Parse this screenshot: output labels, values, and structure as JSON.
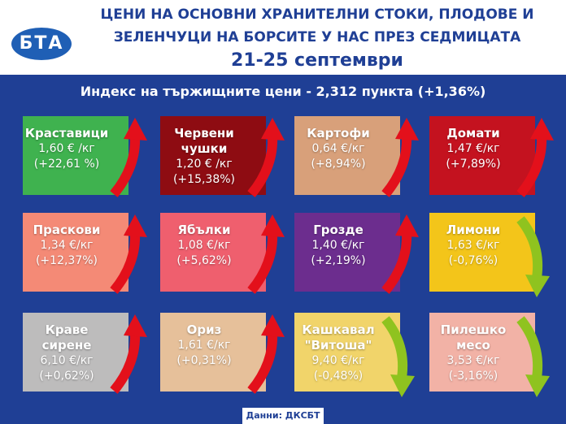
{
  "header": {
    "logo": "БТА",
    "title_lines": [
      "ЦЕНИ НА ОСНОВНИ ХРАНИТЕЛНИ СТОКИ, ПЛОДОВЕ И",
      "ЗЕЛЕНЧУЦИ НА БОРСИТЕ У НАС ПРЕЗ СЕДМИЦАТА"
    ],
    "date": "21-25 септември"
  },
  "subtitle": "Индекс на тържищните цени - 2,312 пункта (+1,36%)",
  "tiles": [
    {
      "name": "Краставици",
      "price": "1,60 € /кг",
      "change": "(+22,61 %)"
    },
    {
      "name": "Червени чушки",
      "price": "1,20 € /кг",
      "change": "(+15,38%)"
    },
    {
      "name": "Картофи",
      "price": "0,64 €/кг",
      "change": "(+8,94%)"
    },
    {
      "name": "Домати",
      "price": "1,47 €/кг",
      "change": "(+7,89%)"
    },
    {
      "name": "Праскови",
      "price": "1,34 €/кг",
      "change": "(+12,37%)"
    },
    {
      "name": "Ябълки",
      "price": "1,08 €/кг",
      "change": "(+5,62%)"
    },
    {
      "name": "Грозде",
      "price": "1,40 €/кг",
      "change": "(+2,19%)"
    },
    {
      "name": "Лимони",
      "price": "1,63 €/кг",
      "change": "(-0,76%)"
    },
    {
      "name": "Краве сирене",
      "price": "6,10 €/кг",
      "change": "(+0,62%)"
    },
    {
      "name": "Ориз",
      "price": "1,61 €/кг",
      "change": "(+0,31%)"
    },
    {
      "name": "Кашкавал \"Витоша\"",
      "price": "9,40 €/кг",
      "change": "(-0,48%)"
    },
    {
      "name": "Пилешко месо",
      "price": "3,53 €/кг",
      "change": "(-3,16%)"
    }
  ],
  "source": "Данни: ДКСБТ"
}
